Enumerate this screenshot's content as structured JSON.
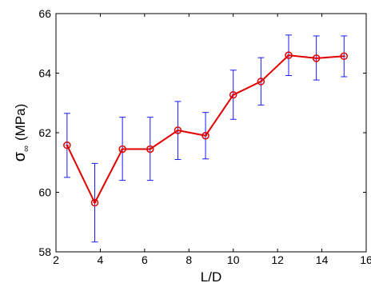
{
  "chart_data": {
    "type": "line",
    "title": "",
    "xlabel": "L/D",
    "ylabel": {
      "symbol": "σ",
      "subscript": "∞",
      "unit": "(MPa)"
    },
    "xlim": [
      2,
      16
    ],
    "ylim": [
      58,
      66
    ],
    "x_ticks": [
      2,
      4,
      6,
      8,
      10,
      12,
      14,
      16
    ],
    "y_ticks": [
      58,
      60,
      62,
      64,
      66
    ],
    "grid": false,
    "series": [
      {
        "x": [
          2.5,
          3.75,
          5.0,
          6.25,
          7.5,
          8.75,
          10.0,
          11.25,
          12.5,
          13.75,
          15.0
        ],
        "y": [
          61.58,
          59.65,
          61.45,
          61.45,
          62.08,
          61.9,
          63.27,
          63.72,
          64.6,
          64.5,
          64.57
        ],
        "error_low": [
          60.5,
          58.33,
          60.4,
          60.4,
          61.1,
          61.12,
          62.45,
          62.93,
          63.92,
          63.77,
          63.88
        ],
        "error_high": [
          62.65,
          60.97,
          62.52,
          62.52,
          63.05,
          62.68,
          64.1,
          64.52,
          65.28,
          65.25,
          65.25
        ],
        "line_color": "#e00000",
        "marker": "circle",
        "error_bar_color": "#1a1aff"
      }
    ]
  }
}
